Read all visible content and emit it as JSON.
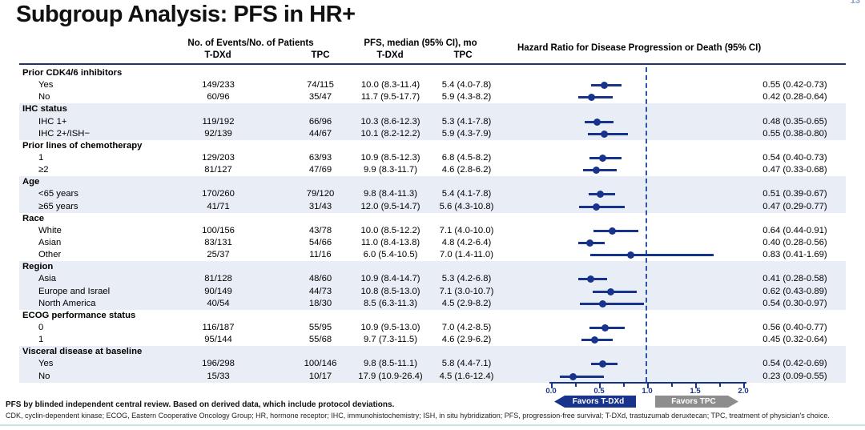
{
  "slide": {
    "title": "Subgroup Analysis: PFS in HR+",
    "page_number": "13"
  },
  "table": {
    "headers": {
      "events_group": "No. of Events/No. of Patients",
      "pfs_group": "PFS, median (95% CI), mo",
      "hr_header": "Hazard Ratio for Disease Progression or Death  (95% CI)",
      "tdxd": "T-DXd",
      "tpc": "TPC"
    },
    "sections": [
      {
        "label": "Prior CDK4/6 inhibitors",
        "shaded": false,
        "rows": [
          {
            "label": "Yes",
            "ev_tdxd": "149/233",
            "ev_tpc": "74/115",
            "pfs_tdxd": "10.0 (8.3-11.4)",
            "pfs_tpc": "5.4 (4.0-7.8)",
            "hr": 0.55,
            "lo": 0.42,
            "hi": 0.73,
            "hr_text": "0.55 (0.42-0.73)"
          },
          {
            "label": "No",
            "ev_tdxd": "60/96",
            "ev_tpc": "35/47",
            "pfs_tdxd": "11.7 (9.5-17.7)",
            "pfs_tpc": "5.9 (4.3-8.2)",
            "hr": 0.42,
            "lo": 0.28,
            "hi": 0.64,
            "hr_text": "0.42 (0.28-0.64)"
          }
        ]
      },
      {
        "label": "IHC status",
        "shaded": true,
        "rows": [
          {
            "label": "IHC 1+",
            "ev_tdxd": "119/192",
            "ev_tpc": "66/96",
            "pfs_tdxd": "10.3 (8.6-12.3)",
            "pfs_tpc": "5.3 (4.1-7.8)",
            "hr": 0.48,
            "lo": 0.35,
            "hi": 0.65,
            "hr_text": "0.48 (0.35-0.65)"
          },
          {
            "label": "IHC 2+/ISH−",
            "ev_tdxd": "92/139",
            "ev_tpc": "44/67",
            "pfs_tdxd": "10.1 (8.2-12.2)",
            "pfs_tpc": "5.9 (4.3-7.9)",
            "hr": 0.55,
            "lo": 0.38,
            "hi": 0.8,
            "hr_text": "0.55 (0.38-0.80)"
          }
        ]
      },
      {
        "label": "Prior lines of chemotherapy",
        "shaded": false,
        "rows": [
          {
            "label": "1",
            "ev_tdxd": "129/203",
            "ev_tpc": "63/93",
            "pfs_tdxd": "10.9 (8.5-12.3)",
            "pfs_tpc": "6.8 (4.5-8.2)",
            "hr": 0.54,
            "lo": 0.4,
            "hi": 0.73,
            "hr_text": "0.54 (0.40-0.73)"
          },
          {
            "label": "≥2",
            "ev_tdxd": "81/127",
            "ev_tpc": "47/69",
            "pfs_tdxd": "9.9 (8.3-11.7)",
            "pfs_tpc": "4.6 (2.8-6.2)",
            "hr": 0.47,
            "lo": 0.33,
            "hi": 0.68,
            "hr_text": "0.47 (0.33-0.68)"
          }
        ]
      },
      {
        "label": "Age",
        "shaded": true,
        "rows": [
          {
            "label": "<65 years",
            "ev_tdxd": "170/260",
            "ev_tpc": "79/120",
            "pfs_tdxd": "9.8 (8.4-11.3)",
            "pfs_tpc": "5.4 (4.1-7.8)",
            "hr": 0.51,
            "lo": 0.39,
            "hi": 0.67,
            "hr_text": "0.51 (0.39-0.67)"
          },
          {
            "label": "≥65 years",
            "ev_tdxd": "41/71",
            "ev_tpc": "31/43",
            "pfs_tdxd": "12.0 (9.5-14.7)",
            "pfs_tpc": "5.6 (4.3-10.8)",
            "hr": 0.47,
            "lo": 0.29,
            "hi": 0.77,
            "hr_text": "0.47 (0.29-0.77)"
          }
        ]
      },
      {
        "label": "Race",
        "shaded": false,
        "rows": [
          {
            "label": "White",
            "ev_tdxd": "100/156",
            "ev_tpc": "43/78",
            "pfs_tdxd": "10.0 (8.5-12.2)",
            "pfs_tpc": "7.1 (4.0-10.0)",
            "hr": 0.64,
            "lo": 0.44,
            "hi": 0.91,
            "hr_text": "0.64 (0.44-0.91)"
          },
          {
            "label": "Asian",
            "ev_tdxd": "83/131",
            "ev_tpc": "54/66",
            "pfs_tdxd": "11.0 (8.4-13.8)",
            "pfs_tpc": "4.8 (4.2-6.4)",
            "hr": 0.4,
            "lo": 0.28,
            "hi": 0.56,
            "hr_text": "0.40 (0.28-0.56)"
          },
          {
            "label": "Other",
            "ev_tdxd": "25/37",
            "ev_tpc": "11/16",
            "pfs_tdxd": "6.0 (5.4-10.5)",
            "pfs_tpc": "7.0 (1.4-11.0)",
            "hr": 0.83,
            "lo": 0.41,
            "hi": 1.69,
            "hr_text": "0.83 (0.41-1.69)"
          }
        ]
      },
      {
        "label": "Region",
        "shaded": true,
        "rows": [
          {
            "label": "Asia",
            "ev_tdxd": "81/128",
            "ev_tpc": "48/60",
            "pfs_tdxd": "10.9 (8.4-14.7)",
            "pfs_tpc": "5.3 (4.2-6.8)",
            "hr": 0.41,
            "lo": 0.28,
            "hi": 0.58,
            "hr_text": "0.41 (0.28-0.58)"
          },
          {
            "label": "Europe and Israel",
            "ev_tdxd": "90/149",
            "ev_tpc": "44/73",
            "pfs_tdxd": "10.8 (8.5-13.0)",
            "pfs_tpc": "7.1 (3.0-10.7)",
            "hr": 0.62,
            "lo": 0.43,
            "hi": 0.89,
            "hr_text": "0.62 (0.43-0.89)"
          },
          {
            "label": "North America",
            "ev_tdxd": "40/54",
            "ev_tpc": "18/30",
            "pfs_tdxd": "8.5 (6.3-11.3)",
            "pfs_tpc": "4.5 (2.9-8.2)",
            "hr": 0.54,
            "lo": 0.3,
            "hi": 0.97,
            "hr_text": "0.54 (0.30-0.97)"
          }
        ]
      },
      {
        "label": "ECOG performance status",
        "shaded": false,
        "rows": [
          {
            "label": "0",
            "ev_tdxd": "116/187",
            "ev_tpc": "55/95",
            "pfs_tdxd": "10.9 (9.5-13.0)",
            "pfs_tpc": "7.0 (4.2-8.5)",
            "hr": 0.56,
            "lo": 0.4,
            "hi": 0.77,
            "hr_text": "0.56 (0.40-0.77)"
          },
          {
            "label": "1",
            "ev_tdxd": "95/144",
            "ev_tpc": "55/68",
            "pfs_tdxd": "9.7 (7.3-11.5)",
            "pfs_tpc": "4.6 (2.9-6.2)",
            "hr": 0.45,
            "lo": 0.32,
            "hi": 0.64,
            "hr_text": "0.45 (0.32-0.64)"
          }
        ]
      },
      {
        "label": "Visceral disease at baseline",
        "shaded": true,
        "rows": [
          {
            "label": "Yes",
            "ev_tdxd": "196/298",
            "ev_tpc": "100/146",
            "pfs_tdxd": "9.8 (8.5-11.1)",
            "pfs_tpc": "5.8 (4.4-7.1)",
            "hr": 0.54,
            "lo": 0.42,
            "hi": 0.69,
            "hr_text": "0.54 (0.42-0.69)"
          },
          {
            "label": "No",
            "ev_tdxd": "15/33",
            "ev_tpc": "10/17",
            "pfs_tdxd": "17.9 (10.9-26.4)",
            "pfs_tpc": "4.5 (1.6-12.4)",
            "hr": 0.23,
            "lo": 0.09,
            "hi": 0.55,
            "hr_text": "0.23 (0.09-0.55)"
          }
        ]
      }
    ]
  },
  "chart_data": {
    "type": "scatter",
    "variant": "forest_plot",
    "title": "Hazard Ratio for Disease Progression or Death  (95% CI)",
    "xlabel": "Hazard Ratio",
    "xlim": [
      0.0,
      2.0
    ],
    "x_major_ticks": [
      0.0,
      0.5,
      1.0,
      1.5,
      2.0
    ],
    "x_minor_ticks": [
      0.25,
      0.75,
      1.25,
      1.75
    ],
    "tick_labels": [
      "0.0",
      "0.5",
      "1.0",
      "1.5",
      "2.0"
    ],
    "reference_line_x": 1.0,
    "grid": false,
    "legend_position": "below-axis",
    "series": [
      {
        "subgroup": "Prior CDK4/6 inhibitors: Yes",
        "hr": 0.55,
        "ci": [
          0.42,
          0.73
        ]
      },
      {
        "subgroup": "Prior CDK4/6 inhibitors: No",
        "hr": 0.42,
        "ci": [
          0.28,
          0.64
        ]
      },
      {
        "subgroup": "IHC status: IHC 1+",
        "hr": 0.48,
        "ci": [
          0.35,
          0.65
        ]
      },
      {
        "subgroup": "IHC status: IHC 2+/ISH−",
        "hr": 0.55,
        "ci": [
          0.38,
          0.8
        ]
      },
      {
        "subgroup": "Prior lines of chemotherapy: 1",
        "hr": 0.54,
        "ci": [
          0.4,
          0.73
        ]
      },
      {
        "subgroup": "Prior lines of chemotherapy: ≥2",
        "hr": 0.47,
        "ci": [
          0.33,
          0.68
        ]
      },
      {
        "subgroup": "Age: <65 years",
        "hr": 0.51,
        "ci": [
          0.39,
          0.67
        ]
      },
      {
        "subgroup": "Age: ≥65 years",
        "hr": 0.47,
        "ci": [
          0.29,
          0.77
        ]
      },
      {
        "subgroup": "Race: White",
        "hr": 0.64,
        "ci": [
          0.44,
          0.91
        ]
      },
      {
        "subgroup": "Race: Asian",
        "hr": 0.4,
        "ci": [
          0.28,
          0.56
        ]
      },
      {
        "subgroup": "Race: Other",
        "hr": 0.83,
        "ci": [
          0.41,
          1.69
        ]
      },
      {
        "subgroup": "Region: Asia",
        "hr": 0.41,
        "ci": [
          0.28,
          0.58
        ]
      },
      {
        "subgroup": "Region: Europe and Israel",
        "hr": 0.62,
        "ci": [
          0.43,
          0.89
        ]
      },
      {
        "subgroup": "Region: North America",
        "hr": 0.54,
        "ci": [
          0.3,
          0.97
        ]
      },
      {
        "subgroup": "ECOG performance status: 0",
        "hr": 0.56,
        "ci": [
          0.4,
          0.77
        ]
      },
      {
        "subgroup": "ECOG performance status: 1",
        "hr": 0.45,
        "ci": [
          0.32,
          0.64
        ]
      },
      {
        "subgroup": "Visceral disease at baseline: Yes",
        "hr": 0.54,
        "ci": [
          0.42,
          0.69
        ]
      },
      {
        "subgroup": "Visceral disease at baseline: No",
        "hr": 0.23,
        "ci": [
          0.09,
          0.55
        ]
      }
    ]
  },
  "legend": {
    "favors_left": "Favors T-DXd",
    "favors_right": "Favors TPC"
  },
  "footnotes": {
    "line1": "PFS by blinded independent central review. Based on derived data, which include protocol deviations.",
    "line2": "CDK, cyclin-dependent kinase; ECOG, Eastern Cooperative Oncology Group; HR, hormone receptor; IHC, immunohistochemistry; ISH, in situ hybridization; PFS, progression-free survival; T-DXd, trastuzumab deruxtecan; TPC, treatment of physician's choice."
  },
  "colors": {
    "marker_navy": "#17338c",
    "reference_dash_blue": "#2a56a5",
    "section_shading": "#e9edf5",
    "favors_tpc_gray": "#8d8d8d",
    "header_rule": "#1c3569",
    "bottom_rule_teal": "#c4e6e2"
  }
}
